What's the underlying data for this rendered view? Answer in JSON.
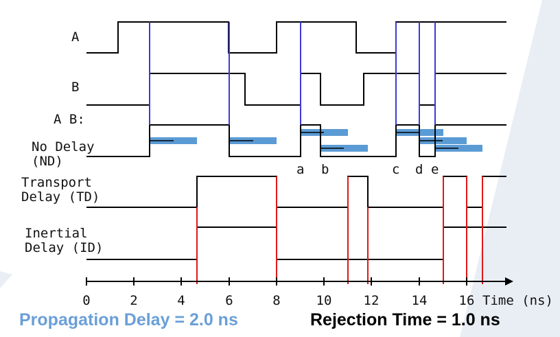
{
  "signals": {
    "a": {
      "label": "A"
    },
    "b": {
      "label": "B"
    },
    "ab": {
      "label": "A B:"
    },
    "nd": {
      "label_line1": "No Delay",
      "label_line2": "(ND)"
    },
    "td": {
      "label_line1": "Transport",
      "label_line2": "Delay (TD)"
    },
    "id": {
      "label_line1": "Inertial",
      "label_line2": "Delay (ID)"
    }
  },
  "axis": {
    "ticks": [
      "0",
      "2",
      "4",
      "6",
      "8",
      "10",
      "12",
      "14",
      "16"
    ],
    "unit_label": "Time (ns)"
  },
  "events": [
    "a",
    "b",
    "c",
    "d",
    "e"
  ],
  "captions": {
    "propagation": "Propagation Delay = 2.0 ns",
    "rejection": "Rejection Time = 1.0 ns"
  },
  "colors": {
    "waveform": "#000000",
    "input_marker": "#3b3bd6",
    "output_marker": "#e01818",
    "delay_bar": "#5b9bd5",
    "propagation_caption": "#6a9fd8",
    "rejection_caption": "#000000",
    "corner_shade": "#e9eef5"
  }
}
